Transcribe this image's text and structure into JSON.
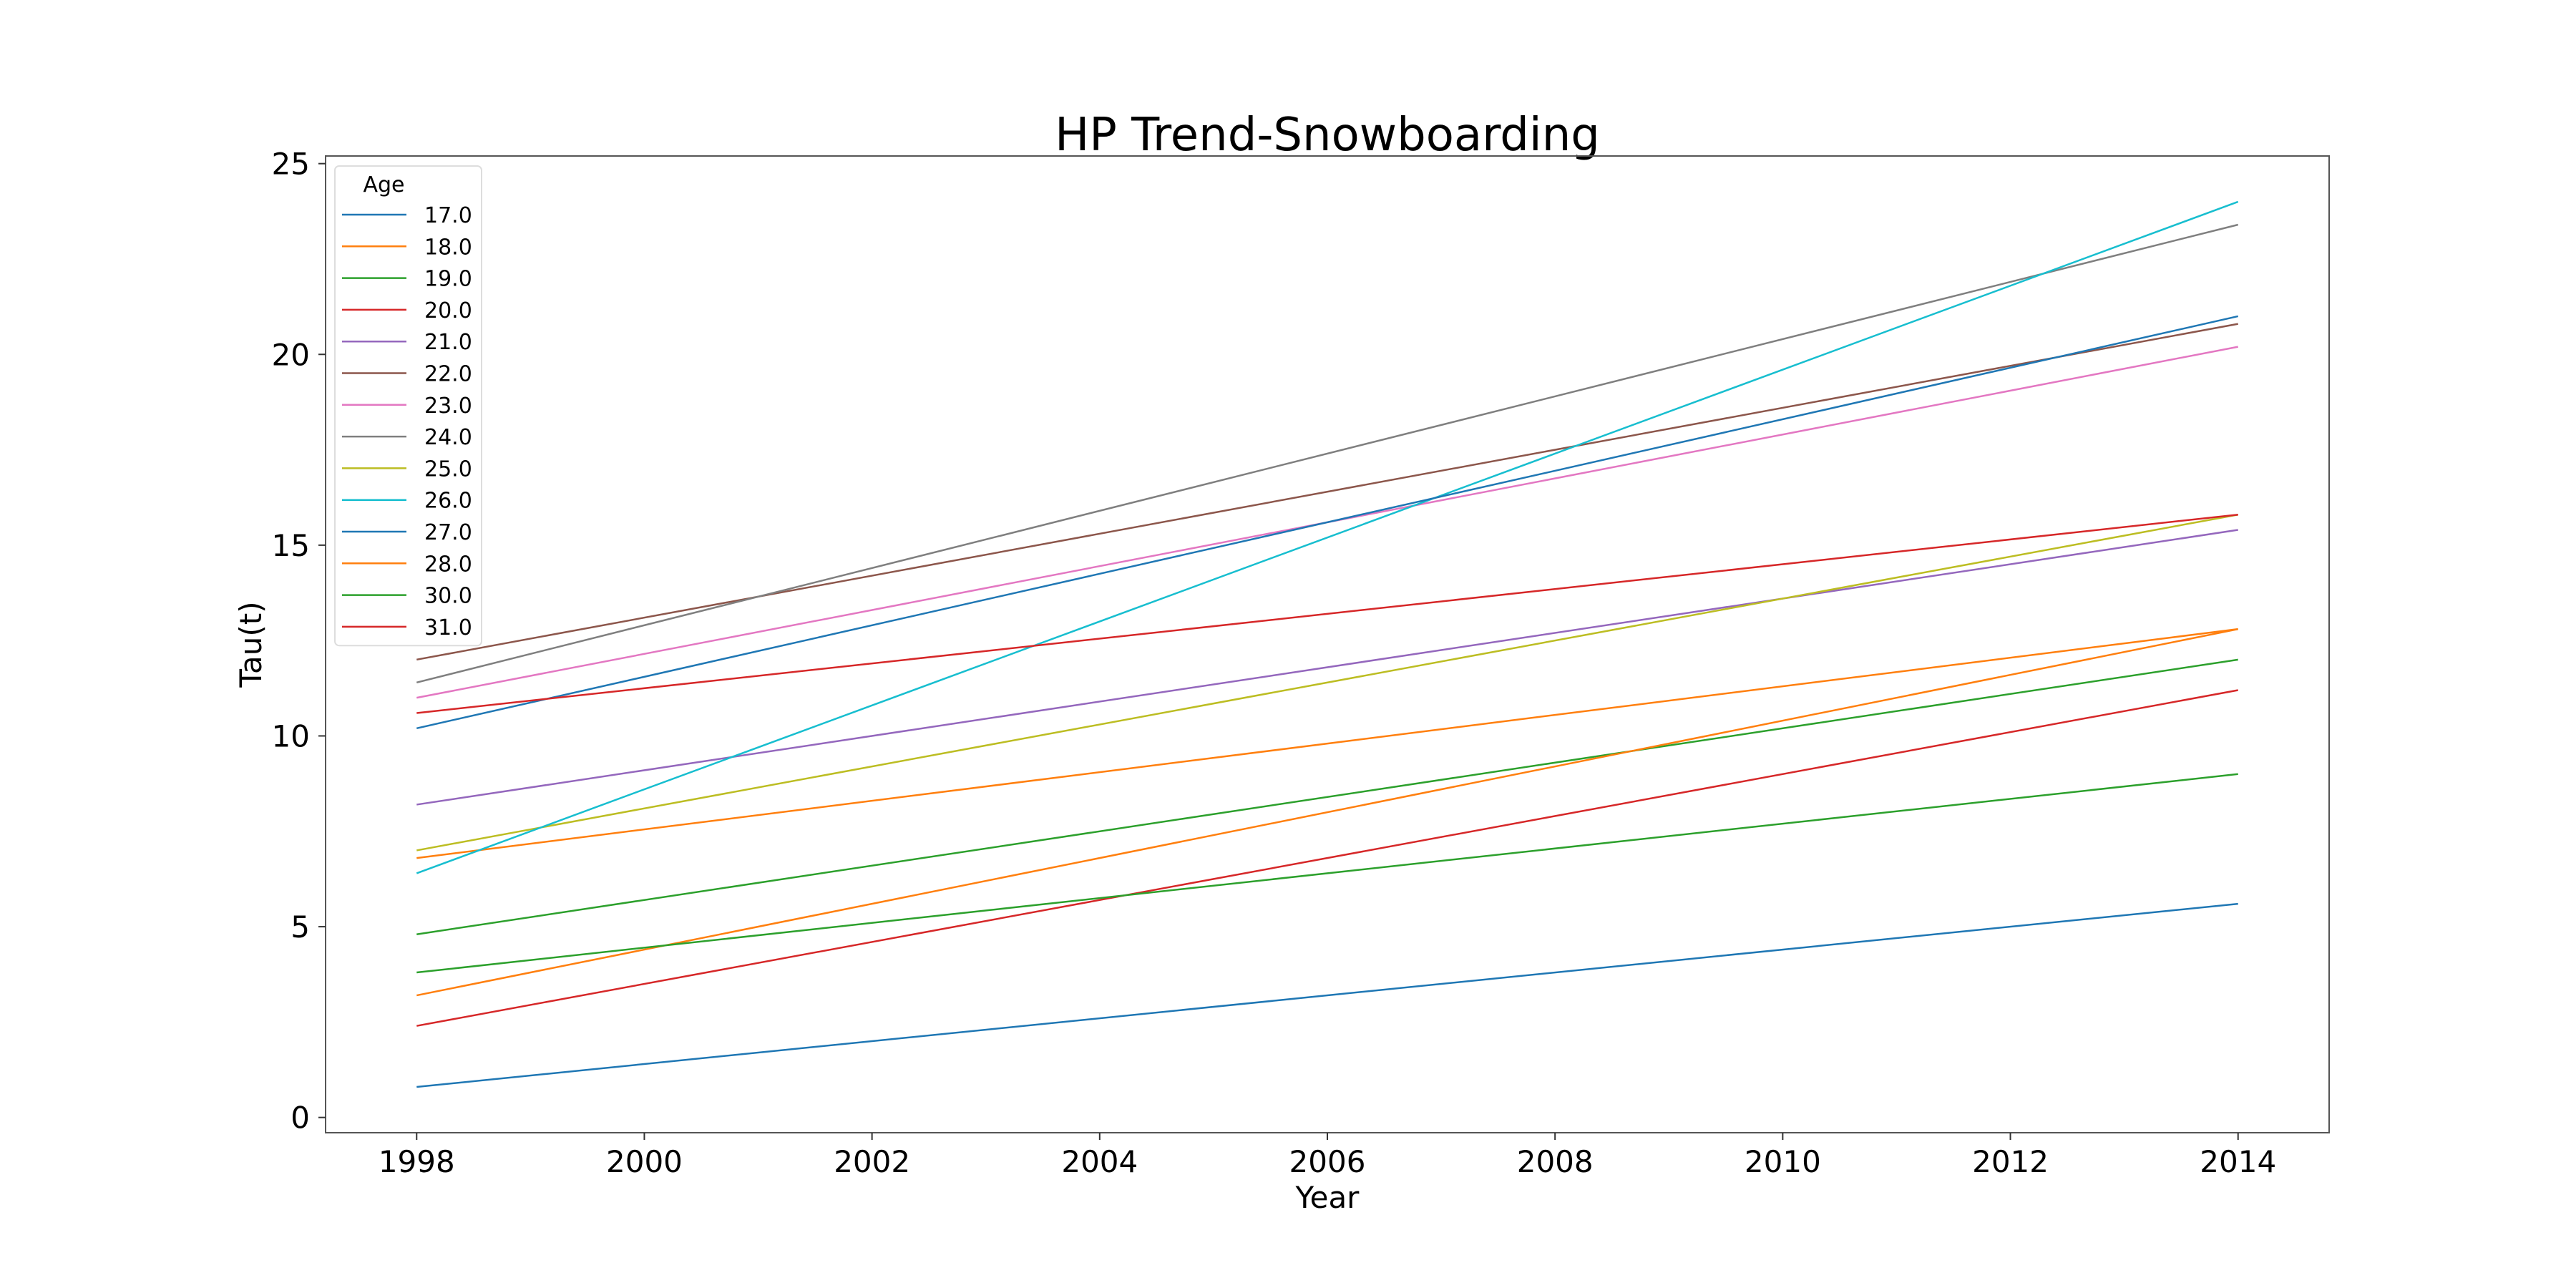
{
  "chart_data": {
    "type": "line",
    "title": "HP Trend-Snowboarding",
    "xlabel": "Year",
    "ylabel": "Tau(t)",
    "xlim": [
      1997.2,
      2014.8
    ],
    "ylim": [
      -0.4,
      25.2
    ],
    "xticks": [
      1998,
      2000,
      2002,
      2004,
      2006,
      2008,
      2010,
      2012,
      2014
    ],
    "yticks": [
      0,
      5,
      10,
      15,
      20,
      25
    ],
    "grid": false,
    "legend": {
      "title": "Age",
      "placement": "top-left"
    },
    "series": [
      {
        "name": "17.0",
        "color": "#1f77b4",
        "x": [
          1998,
          2014
        ],
        "y": [
          0.8,
          5.6
        ]
      },
      {
        "name": "18.0",
        "color": "#ff7f0e",
        "x": [
          1998,
          2014
        ],
        "y": [
          6.8,
          12.8
        ]
      },
      {
        "name": "19.0",
        "color": "#2ca02c",
        "x": [
          1998,
          2014
        ],
        "y": [
          4.8,
          12.0
        ]
      },
      {
        "name": "20.0",
        "color": "#d62728",
        "x": [
          1998,
          2014
        ],
        "y": [
          2.4,
          11.2
        ]
      },
      {
        "name": "21.0",
        "color": "#9467bd",
        "x": [
          1998,
          2014
        ],
        "y": [
          8.2,
          15.4
        ]
      },
      {
        "name": "22.0",
        "color": "#8c564b",
        "x": [
          1998,
          2014
        ],
        "y": [
          12.0,
          20.8
        ]
      },
      {
        "name": "23.0",
        "color": "#e377c2",
        "x": [
          1998,
          2014
        ],
        "y": [
          11.0,
          20.2
        ]
      },
      {
        "name": "24.0",
        "color": "#7f7f7f",
        "x": [
          1998,
          2014
        ],
        "y": [
          11.4,
          23.4
        ]
      },
      {
        "name": "25.0",
        "color": "#bcbd22",
        "x": [
          1998,
          2014
        ],
        "y": [
          7.0,
          15.8
        ]
      },
      {
        "name": "26.0",
        "color": "#17becf",
        "x": [
          1998,
          2014
        ],
        "y": [
          6.4,
          24.0
        ]
      },
      {
        "name": "27.0",
        "color": "#1f77b4",
        "x": [
          1998,
          2014
        ],
        "y": [
          10.2,
          21.0
        ]
      },
      {
        "name": "28.0",
        "color": "#ff7f0e",
        "x": [
          1998,
          2014
        ],
        "y": [
          3.2,
          12.8
        ]
      },
      {
        "name": "30.0",
        "color": "#2ca02c",
        "x": [
          1998,
          2014
        ],
        "y": [
          3.8,
          9.0
        ]
      },
      {
        "name": "31.0",
        "color": "#d62728",
        "x": [
          1998,
          2014
        ],
        "y": [
          10.6,
          15.8
        ]
      }
    ]
  }
}
